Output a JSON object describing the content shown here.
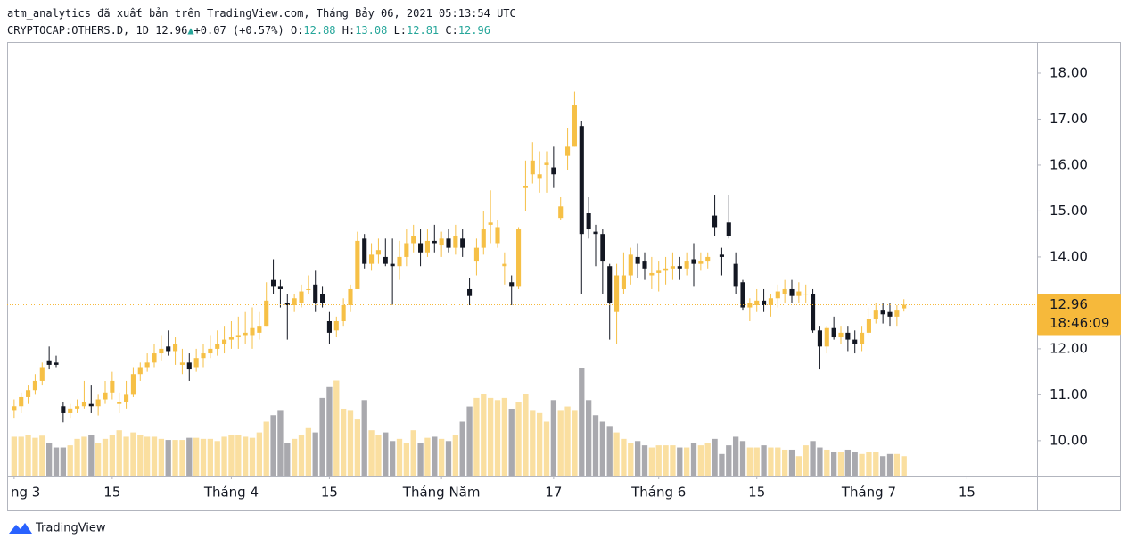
{
  "header": {
    "line": "atm_analytics đã xuất bản trên TradingView.com, Tháng Bảy 06, 2021 05:13:54 UTC",
    "symbol": "CRYPTOCAP:OTHERS.D, 1D",
    "last": "12.96",
    "change": "+0.07 (+0.57%)",
    "o_label": "O:",
    "o": "12.88",
    "h_label": "H:",
    "h": "13.08",
    "l_label": "L:",
    "l": "12.81",
    "c_label": "C:",
    "c": "12.96"
  },
  "chart_data": {
    "type": "candlestick",
    "up_color": "#f6c046",
    "down_color": "#131722",
    "volume_up_color": "#fadfa0",
    "volume_down_color": "#a9a9ae",
    "last_price": {
      "value": 12.96,
      "label": "12.96",
      "countdown": "18:46:09",
      "color": "#f6b93b"
    },
    "xlim": [
      "2021-02-28",
      "2021-07-25"
    ],
    "xticks": [
      {
        "value": "2021-03-01",
        "label": "ng 3"
      },
      {
        "value": "2021-03-15",
        "label": "15"
      },
      {
        "value": "2021-04-01",
        "label": "Tháng 4"
      },
      {
        "value": "2021-04-15",
        "label": "15"
      },
      {
        "value": "2021-05-01",
        "label": "Tháng Năm"
      },
      {
        "value": "2021-05-17",
        "label": "17"
      },
      {
        "value": "2021-06-01",
        "label": "Tháng 6"
      },
      {
        "value": "2021-06-15",
        "label": "15"
      },
      {
        "value": "2021-07-01",
        "label": "Tháng 7"
      },
      {
        "value": "2021-07-15",
        "label": "15"
      }
    ],
    "ylim": [
      9.24,
      18.66
    ],
    "yticks": [
      {
        "value": 10,
        "label": "10.00"
      },
      {
        "value": 11,
        "label": "11.00"
      },
      {
        "value": 12,
        "label": "12.00"
      },
      {
        "value": 13,
        "label": "13.00"
      },
      {
        "value": 14,
        "label": "14.00"
      },
      {
        "value": 15,
        "label": "15.00"
      },
      {
        "value": 16,
        "label": "16.00"
      },
      {
        "value": 17,
        "label": "17.00"
      },
      {
        "value": 18,
        "label": "18.00"
      }
    ],
    "x": [
      "2021-03-01",
      "2021-03-02",
      "2021-03-03",
      "2021-03-04",
      "2021-03-05",
      "2021-03-06",
      "2021-03-07",
      "2021-03-08",
      "2021-03-09",
      "2021-03-10",
      "2021-03-11",
      "2021-03-12",
      "2021-03-13",
      "2021-03-14",
      "2021-03-15",
      "2021-03-16",
      "2021-03-17",
      "2021-03-18",
      "2021-03-19",
      "2021-03-20",
      "2021-03-21",
      "2021-03-22",
      "2021-03-23",
      "2021-03-24",
      "2021-03-25",
      "2021-03-26",
      "2021-03-27",
      "2021-03-28",
      "2021-03-29",
      "2021-03-30",
      "2021-03-31",
      "2021-04-01",
      "2021-04-02",
      "2021-04-03",
      "2021-04-04",
      "2021-04-05",
      "2021-04-06",
      "2021-04-07",
      "2021-04-08",
      "2021-04-09",
      "2021-04-10",
      "2021-04-11",
      "2021-04-12",
      "2021-04-13",
      "2021-04-14",
      "2021-04-15",
      "2021-04-16",
      "2021-04-17",
      "2021-04-18",
      "2021-04-19",
      "2021-04-20",
      "2021-04-21",
      "2021-04-22",
      "2021-04-23",
      "2021-04-24",
      "2021-04-25",
      "2021-04-26",
      "2021-04-27",
      "2021-04-28",
      "2021-04-29",
      "2021-04-30",
      "2021-05-01",
      "2021-05-02",
      "2021-05-03",
      "2021-05-04",
      "2021-05-05",
      "2021-05-06",
      "2021-05-07",
      "2021-05-08",
      "2021-05-09",
      "2021-05-10",
      "2021-05-11",
      "2021-05-12",
      "2021-05-13",
      "2021-05-14",
      "2021-05-15",
      "2021-05-16",
      "2021-05-17",
      "2021-05-18",
      "2021-05-19",
      "2021-05-20",
      "2021-05-21",
      "2021-05-22",
      "2021-05-23",
      "2021-05-24",
      "2021-05-25",
      "2021-05-26",
      "2021-05-27",
      "2021-05-28",
      "2021-05-29",
      "2021-05-30",
      "2021-05-31",
      "2021-06-01",
      "2021-06-02",
      "2021-06-03",
      "2021-06-04",
      "2021-06-05",
      "2021-06-06",
      "2021-06-07",
      "2021-06-08",
      "2021-06-09",
      "2021-06-10",
      "2021-06-11",
      "2021-06-12",
      "2021-06-13",
      "2021-06-14",
      "2021-06-15",
      "2021-06-16",
      "2021-06-17",
      "2021-06-18",
      "2021-06-19",
      "2021-06-20",
      "2021-06-21",
      "2021-06-22",
      "2021-06-23",
      "2021-06-24",
      "2021-06-25",
      "2021-06-26",
      "2021-06-27",
      "2021-06-28",
      "2021-06-29",
      "2021-06-30",
      "2021-07-01",
      "2021-07-02",
      "2021-07-03",
      "2021-07-04",
      "2021-07-05",
      "2021-07-06"
    ],
    "candles": [
      [
        10.65,
        10.9,
        10.5,
        10.75
      ],
      [
        10.75,
        11.05,
        10.6,
        10.95
      ],
      [
        10.95,
        11.2,
        10.8,
        11.1
      ],
      [
        11.1,
        11.45,
        11.0,
        11.3
      ],
      [
        11.3,
        11.7,
        11.2,
        11.6
      ],
      [
        11.75,
        12.05,
        11.55,
        11.65
      ],
      [
        11.7,
        11.85,
        11.6,
        11.65
      ],
      [
        10.75,
        10.85,
        10.4,
        10.6
      ],
      [
        10.6,
        10.8,
        10.5,
        10.7
      ],
      [
        10.7,
        10.9,
        10.6,
        10.75
      ],
      [
        10.75,
        11.3,
        10.7,
        10.85
      ],
      [
        10.8,
        11.2,
        10.6,
        10.75
      ],
      [
        10.75,
        11.0,
        10.55,
        10.9
      ],
      [
        10.9,
        11.3,
        10.8,
        11.05
      ],
      [
        11.05,
        11.5,
        10.9,
        11.3
      ],
      [
        10.8,
        11.05,
        10.6,
        10.85
      ],
      [
        10.85,
        11.3,
        10.7,
        11.0
      ],
      [
        11.0,
        11.6,
        10.95,
        11.45
      ],
      [
        11.45,
        11.7,
        11.3,
        11.6
      ],
      [
        11.6,
        11.9,
        11.5,
        11.7
      ],
      [
        11.7,
        12.1,
        11.6,
        11.9
      ],
      [
        11.9,
        12.3,
        11.75,
        12.0
      ],
      [
        12.05,
        12.4,
        11.85,
        11.95
      ],
      [
        11.95,
        12.25,
        11.65,
        12.1
      ],
      [
        11.65,
        12.0,
        11.45,
        11.7
      ],
      [
        11.7,
        11.9,
        11.3,
        11.55
      ],
      [
        11.6,
        12.0,
        11.5,
        11.8
      ],
      [
        11.8,
        12.1,
        11.6,
        11.9
      ],
      [
        11.9,
        12.3,
        11.8,
        12.0
      ],
      [
        12.0,
        12.4,
        11.85,
        12.1
      ],
      [
        12.1,
        12.5,
        11.9,
        12.2
      ],
      [
        12.2,
        12.6,
        12.0,
        12.25
      ],
      [
        12.25,
        12.7,
        12.0,
        12.3
      ],
      [
        12.3,
        12.8,
        12.1,
        12.35
      ],
      [
        12.3,
        12.9,
        12.0,
        12.45
      ],
      [
        12.35,
        12.8,
        12.2,
        12.5
      ],
      [
        12.5,
        13.45,
        12.5,
        13.05
      ],
      [
        13.5,
        13.95,
        13.2,
        13.35
      ],
      [
        13.35,
        13.5,
        12.9,
        13.3
      ],
      [
        13.0,
        13.2,
        12.2,
        12.95
      ],
      [
        12.95,
        13.2,
        12.8,
        13.1
      ],
      [
        13.0,
        13.4,
        12.9,
        13.25
      ],
      [
        13.3,
        13.6,
        13.2,
        13.3
      ],
      [
        13.4,
        13.7,
        12.8,
        13.0
      ],
      [
        13.2,
        13.35,
        12.9,
        13.0
      ],
      [
        12.6,
        12.8,
        12.1,
        12.35
      ],
      [
        12.4,
        12.7,
        12.25,
        12.6
      ],
      [
        12.6,
        13.1,
        12.5,
        12.95
      ],
      [
        12.95,
        13.4,
        12.8,
        13.3
      ],
      [
        13.3,
        14.55,
        13.3,
        14.35
      ],
      [
        14.4,
        14.5,
        13.75,
        13.85
      ],
      [
        13.85,
        14.3,
        13.7,
        14.05
      ],
      [
        14.05,
        14.4,
        13.85,
        14.15
      ],
      [
        14.0,
        14.4,
        13.8,
        13.85
      ],
      [
        13.85,
        14.4,
        12.95,
        13.8
      ],
      [
        13.8,
        14.35,
        13.5,
        14.0
      ],
      [
        14.0,
        14.6,
        13.8,
        14.3
      ],
      [
        14.3,
        14.7,
        14.1,
        14.45
      ],
      [
        14.3,
        14.6,
        13.8,
        14.1
      ],
      [
        14.1,
        14.6,
        14.0,
        14.35
      ],
      [
        14.35,
        14.7,
        14.1,
        14.3
      ],
      [
        14.25,
        14.55,
        14.0,
        14.4
      ],
      [
        14.4,
        14.6,
        14.1,
        14.2
      ],
      [
        14.2,
        14.7,
        14.05,
        14.45
      ],
      [
        14.4,
        14.6,
        14.0,
        14.2
      ],
      [
        13.3,
        13.55,
        12.95,
        13.15
      ],
      [
        13.9,
        14.4,
        13.6,
        14.2
      ],
      [
        14.2,
        15.0,
        14.05,
        14.6
      ],
      [
        14.7,
        15.45,
        14.3,
        14.75
      ],
      [
        14.3,
        14.8,
        14.2,
        14.65
      ],
      [
        13.8,
        14.1,
        13.4,
        13.85
      ],
      [
        13.45,
        13.6,
        12.95,
        13.35
      ],
      [
        13.35,
        14.65,
        13.3,
        14.6
      ],
      [
        15.5,
        16.1,
        15.0,
        15.55
      ],
      [
        15.8,
        16.5,
        15.6,
        16.1
      ],
      [
        15.7,
        16.3,
        15.4,
        15.8
      ],
      [
        16.0,
        16.3,
        15.4,
        16.05
      ],
      [
        15.95,
        16.4,
        15.5,
        15.8
      ],
      [
        14.85,
        15.3,
        14.8,
        15.1
      ],
      [
        16.2,
        16.8,
        15.9,
        16.4
      ],
      [
        16.4,
        17.6,
        16.4,
        17.3
      ],
      [
        16.85,
        16.95,
        13.2,
        14.5
      ],
      [
        14.95,
        15.3,
        14.4,
        14.6
      ],
      [
        14.55,
        14.7,
        13.8,
        14.5
      ],
      [
        14.5,
        14.6,
        13.2,
        13.9
      ],
      [
        13.8,
        13.85,
        12.2,
        13.0
      ],
      [
        12.8,
        13.85,
        12.1,
        13.6
      ],
      [
        13.3,
        14.1,
        13.2,
        13.6
      ],
      [
        13.6,
        14.2,
        13.4,
        14.05
      ],
      [
        14.0,
        14.3,
        13.55,
        13.85
      ],
      [
        13.9,
        14.1,
        13.5,
        13.75
      ],
      [
        13.6,
        14.0,
        13.3,
        13.65
      ],
      [
        13.65,
        13.9,
        13.25,
        13.7
      ],
      [
        13.7,
        14.0,
        13.4,
        13.75
      ],
      [
        13.75,
        14.1,
        13.5,
        13.8
      ],
      [
        13.8,
        14.0,
        13.5,
        13.75
      ],
      [
        13.75,
        14.1,
        13.6,
        13.9
      ],
      [
        13.95,
        14.3,
        13.35,
        13.85
      ],
      [
        13.85,
        14.1,
        13.7,
        13.9
      ],
      [
        13.9,
        14.1,
        13.75,
        14.0
      ],
      [
        14.9,
        15.35,
        14.45,
        14.65
      ],
      [
        14.05,
        14.2,
        13.6,
        14.0
      ],
      [
        14.75,
        15.35,
        14.4,
        14.45
      ],
      [
        13.85,
        14.1,
        13.2,
        13.35
      ],
      [
        13.45,
        13.5,
        12.85,
        12.9
      ],
      [
        12.9,
        13.1,
        12.6,
        13.0
      ],
      [
        12.95,
        13.3,
        12.8,
        13.05
      ],
      [
        13.05,
        13.3,
        12.8,
        12.95
      ],
      [
        12.95,
        13.2,
        12.7,
        13.1
      ],
      [
        13.1,
        13.4,
        12.9,
        13.25
      ],
      [
        13.2,
        13.5,
        13.0,
        13.3
      ],
      [
        13.3,
        13.5,
        13.0,
        13.15
      ],
      [
        13.15,
        13.45,
        13.0,
        13.25
      ],
      [
        13.2,
        13.4,
        13.0,
        13.2
      ],
      [
        13.2,
        13.3,
        12.35,
        12.4
      ],
      [
        12.4,
        12.5,
        11.55,
        12.05
      ],
      [
        12.05,
        12.5,
        11.9,
        12.45
      ],
      [
        12.45,
        12.7,
        12.2,
        12.25
      ],
      [
        12.25,
        12.5,
        12.1,
        12.35
      ],
      [
        12.35,
        12.5,
        11.95,
        12.2
      ],
      [
        12.2,
        12.4,
        11.9,
        12.1
      ],
      [
        12.1,
        12.5,
        11.95,
        12.35
      ],
      [
        12.35,
        12.9,
        12.3,
        12.65
      ],
      [
        12.65,
        13.0,
        12.55,
        12.85
      ],
      [
        12.85,
        13.0,
        12.55,
        12.75
      ],
      [
        12.8,
        13.0,
        12.5,
        12.7
      ],
      [
        12.7,
        12.95,
        12.5,
        12.85
      ],
      [
        12.88,
        13.08,
        12.81,
        12.96
      ]
    ],
    "volumes": [
      36,
      36,
      38,
      35,
      37,
      30,
      26,
      26,
      28,
      34,
      36,
      38,
      30,
      34,
      38,
      42,
      36,
      40,
      38,
      36,
      36,
      34,
      33,
      33,
      33,
      35,
      35,
      34,
      34,
      32,
      36,
      38,
      38,
      36,
      35,
      40,
      50,
      56,
      60,
      30,
      34,
      38,
      44,
      40,
      72,
      82,
      88,
      62,
      60,
      52,
      70,
      42,
      38,
      40,
      32,
      34,
      30,
      42,
      30,
      35,
      36,
      34,
      32,
      38,
      50,
      64,
      72,
      76,
      72,
      70,
      72,
      62,
      68,
      76,
      60,
      58,
      50,
      70,
      60,
      64,
      60,
      100,
      70,
      56,
      50,
      46,
      40,
      34,
      30,
      32,
      28,
      26,
      28,
      28,
      28,
      26,
      26,
      30,
      28,
      30,
      34,
      20,
      28,
      36,
      32,
      26,
      26,
      28,
      26,
      26,
      24,
      24,
      18,
      28,
      32,
      26,
      24,
      22,
      22,
      24,
      22,
      20,
      22,
      22,
      18,
      20,
      20,
      18
    ]
  },
  "footer": {
    "logo": "TradingView"
  }
}
